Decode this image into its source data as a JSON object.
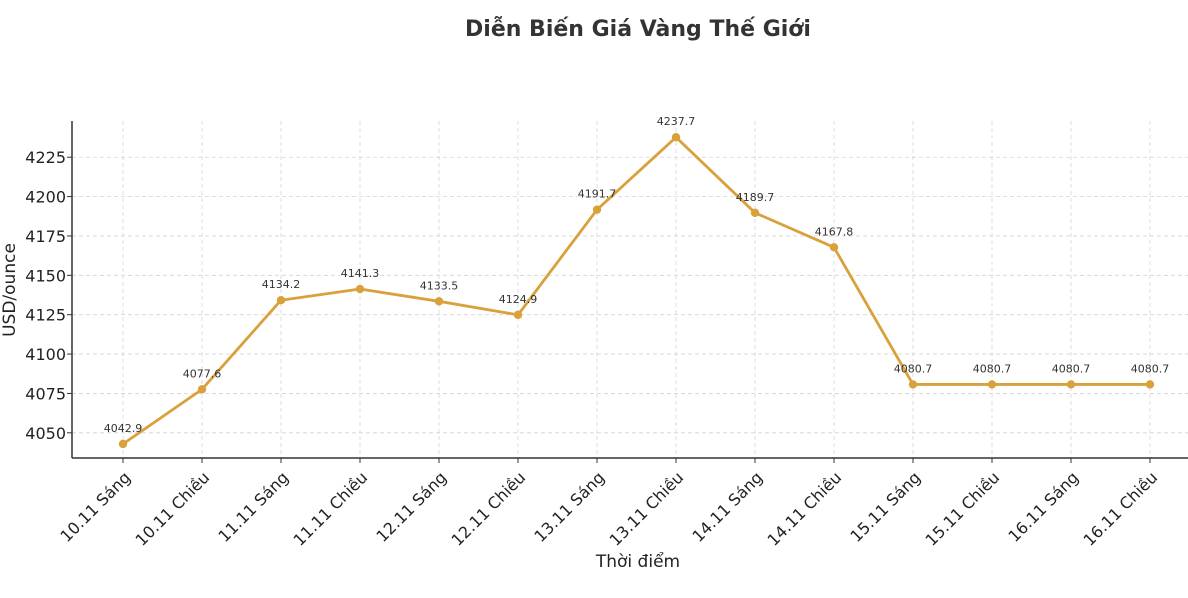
{
  "chart_data": {
    "type": "line",
    "title": "Diễn Biến Giá Vàng Thế Giới",
    "xlabel": "Thời điểm",
    "ylabel": "USD/ounce",
    "categories": [
      "10.11 Sáng",
      "10.11 Chiều",
      "11.11 Sáng",
      "11.11 Chiều",
      "12.11 Sáng",
      "12.11 Chiều",
      "13.11 Sáng",
      "13.11 Chiều",
      "14.11 Sáng",
      "14.11 Chiều",
      "15.11 Sáng",
      "15.11 Chiều",
      "16.11 Sáng",
      "16.11 Chiều"
    ],
    "series": [
      {
        "values": [
          4042.9,
          4077.6,
          4134.2,
          4141.3,
          4133.5,
          4124.9,
          4191.7,
          4237.7,
          4189.7,
          4167.8,
          4080.7,
          4080.7,
          4080.7,
          4080.7
        ],
        "labels": [
          "4042.9",
          "4077.6",
          "4134.2",
          "4141.3",
          "4133.5",
          "4124.9",
          "4191.7",
          "4237.7",
          "4189.7",
          "4167.8",
          "4080.7",
          "4080.7",
          "4080.7",
          "4080.7"
        ],
        "color": "#D9A13B"
      }
    ],
    "ylim": [
      4034,
      4248
    ],
    "yticks": [
      4050,
      4075,
      4100,
      4125,
      4150,
      4175,
      4200,
      4225
    ],
    "ytick_labels": [
      "4050",
      "4075",
      "4100",
      "4125",
      "4150",
      "4175",
      "4200",
      "4225"
    ],
    "grid": true,
    "legend": "none"
  }
}
